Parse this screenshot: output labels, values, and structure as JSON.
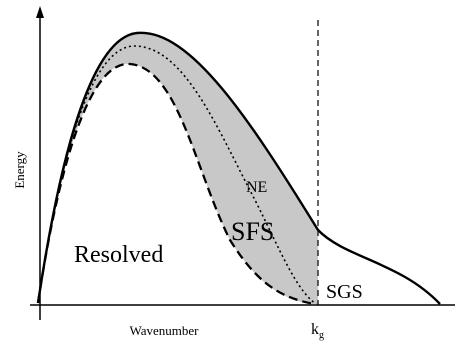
{
  "diagram": {
    "y_axis_label": "Energy",
    "x_axis_label": "Wavenumber",
    "cutoff_label": "k",
    "cutoff_subscript": "g",
    "region_labels": {
      "resolved": "Resolved",
      "sfs": "SFS",
      "sgs": "SGS",
      "ne": "NE"
    },
    "curves": [
      {
        "name": "total-energy",
        "style": "solid"
      },
      {
        "name": "ne-boundary",
        "style": "dotted"
      },
      {
        "name": "resolved-boundary",
        "style": "dashed"
      }
    ],
    "colors": {
      "sfs_fill": "#c8c8c8",
      "line": "#000000",
      "background": "#ffffff"
    }
  }
}
